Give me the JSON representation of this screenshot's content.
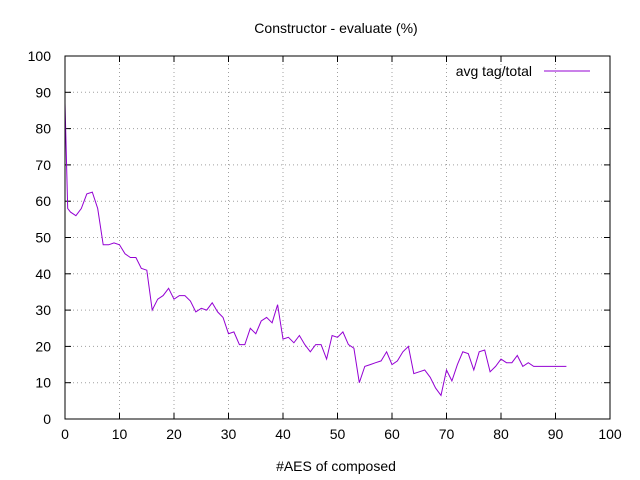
{
  "chart_data": {
    "type": "line",
    "title": "Constructor - evaluate (%)",
    "xlabel": "#AES of composed",
    "ylabel": "",
    "xlim": [
      0,
      100
    ],
    "ylim": [
      0,
      100
    ],
    "xticks": [
      0,
      10,
      20,
      30,
      40,
      50,
      60,
      70,
      80,
      90,
      100
    ],
    "yticks": [
      0,
      10,
      20,
      30,
      40,
      50,
      60,
      70,
      80,
      90,
      100
    ],
    "grid": true,
    "legend_position": "top-right",
    "series": [
      {
        "name": "avg tag/total",
        "color": "#9400d3",
        "x": [
          0,
          0.5,
          1,
          2,
          3,
          4,
          5,
          6,
          7,
          8,
          9,
          10,
          11,
          12,
          13,
          14,
          15,
          16,
          17,
          18,
          19,
          20,
          21,
          22,
          23,
          24,
          25,
          26,
          27,
          28,
          29,
          30,
          31,
          32,
          33,
          34,
          35,
          36,
          37,
          38,
          39,
          40,
          41,
          42,
          43,
          44,
          45,
          46,
          47,
          48,
          49,
          50,
          51,
          52,
          53,
          54,
          55,
          56,
          57,
          58,
          59,
          60,
          61,
          62,
          63,
          64,
          65,
          66,
          67,
          68,
          69,
          70,
          71,
          72,
          73,
          74,
          75,
          76,
          77,
          78,
          79,
          80,
          81,
          82,
          83,
          84,
          85,
          86,
          87,
          88,
          89,
          90,
          91,
          92
        ],
        "y": [
          87,
          58,
          57,
          56,
          58,
          62,
          62.5,
          58,
          48,
          48,
          48.5,
          48,
          45.5,
          44.5,
          44.5,
          41.5,
          41,
          30,
          33,
          34,
          36,
          33,
          34,
          34,
          32.5,
          29.5,
          30.5,
          30,
          32,
          29.5,
          28,
          23.5,
          24,
          20.5,
          20.5,
          25,
          23.5,
          27,
          28,
          26.5,
          31.5,
          22,
          22.5,
          21,
          23,
          20.5,
          18.5,
          20.5,
          20.5,
          16.5,
          23,
          22.5,
          24,
          20.5,
          19.5,
          10,
          14.5,
          15,
          15.5,
          16,
          18.5,
          15,
          16,
          18.5,
          20,
          12.5,
          13,
          13.5,
          11.5,
          8.5,
          6.5,
          13.5,
          10.5,
          15,
          18.5,
          18,
          13.5,
          18.5,
          19,
          13,
          14.5,
          16.5,
          15.5,
          15.5,
          17.5,
          14.5,
          15.5,
          14.5,
          14.5,
          14.5,
          14.5,
          14.5,
          14.5,
          14.5
        ]
      }
    ]
  }
}
